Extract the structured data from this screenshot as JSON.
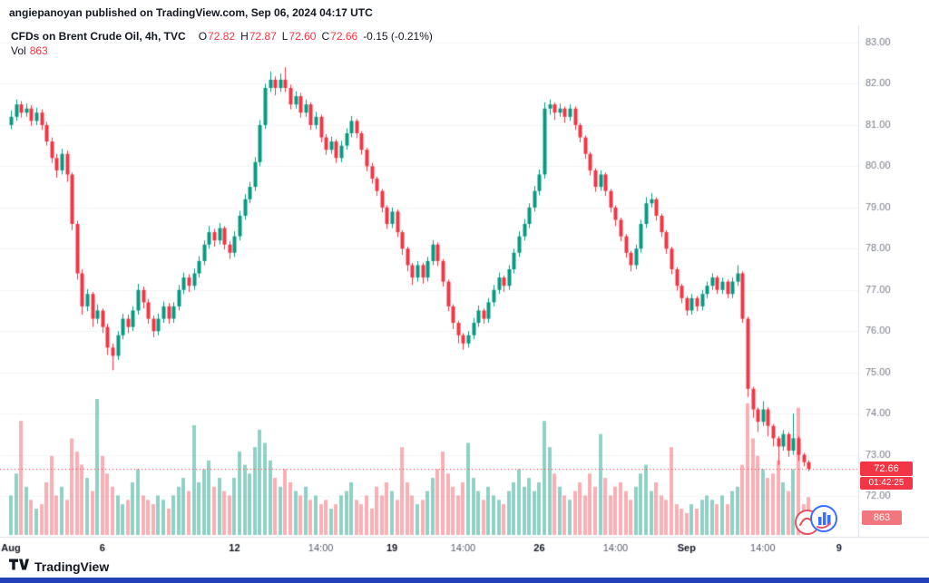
{
  "page": {
    "attribution": "angiepanoyan published on TradingView.com, Sep 06, 2024 04:17 UTC",
    "footer_brand": "TradingView"
  },
  "legend": {
    "title": "CFDs on Brent Crude Oil, 4h, TVC",
    "o_label": "O",
    "o": "72.82",
    "h_label": "H",
    "h": "72.87",
    "l_label": "L",
    "l": "72.60",
    "c_label": "C",
    "c": "72.66",
    "change": "-0.15 (-0.21%)",
    "vol_label": "Vol",
    "vol_value": "863"
  },
  "price_scale": {
    "current_price": "72.66",
    "countdown": "01:42:25",
    "volume_value": "863"
  },
  "colors": {
    "up": "#089981",
    "down": "#F23645",
    "vol_up": "rgba(8,153,129,0.45)",
    "vol_down": "rgba(242,54,69,0.40)",
    "axis_text": "#787B86",
    "tick_strong": "#131722",
    "tick_weak": "#5A5E6B",
    "grid": "#F4F5F8",
    "separator": "#DDE0E8",
    "footer_bar": "#2240B8",
    "price_line": "#F23645"
  },
  "chart_data": {
    "type": "candlestick",
    "title": "CFDs on Brent Crude Oil",
    "interval": "4h",
    "exchange": "TVC",
    "last": {
      "o": 72.82,
      "h": 72.87,
      "l": 72.6,
      "c": 72.66,
      "change": -0.15,
      "change_pct": -0.21,
      "volume": 863
    },
    "current_price": 72.66,
    "ylim": [
      72.0,
      83.0
    ],
    "grid": "faint",
    "y_axis": {
      "ticks": [
        83,
        82,
        81,
        80,
        79,
        78,
        77,
        76,
        75,
        74,
        73,
        72
      ],
      "format": "0.00"
    },
    "x_ticks": [
      {
        "i": 0,
        "label": "Aug",
        "strong": true
      },
      {
        "i": 18,
        "label": "6",
        "strong": true
      },
      {
        "i": 44,
        "label": "12",
        "strong": true
      },
      {
        "i": 61,
        "label": "14:00",
        "strong": false
      },
      {
        "i": 75,
        "label": "19",
        "strong": true
      },
      {
        "i": 89,
        "label": "14:00",
        "strong": false
      },
      {
        "i": 104,
        "label": "26",
        "strong": true
      },
      {
        "i": 119,
        "label": "14:00",
        "strong": false
      },
      {
        "i": 133,
        "label": "Sep",
        "strong": true
      },
      {
        "i": 148,
        "label": "14:00",
        "strong": false
      },
      {
        "i": 163,
        "label": "9",
        "strong": true
      }
    ],
    "candles_format": [
      "open",
      "high",
      "low",
      "close",
      "volume"
    ],
    "candles": [
      [
        81.0,
        81.35,
        80.9,
        81.2,
        900
      ],
      [
        81.2,
        81.62,
        81.1,
        81.5,
        1400
      ],
      [
        81.5,
        81.58,
        81.18,
        81.3,
        2600
      ],
      [
        81.3,
        81.52,
        81.2,
        81.4,
        1100
      ],
      [
        81.4,
        81.48,
        80.98,
        81.1,
        800
      ],
      [
        81.1,
        81.42,
        81.0,
        81.3,
        600
      ],
      [
        81.3,
        81.38,
        80.88,
        81.0,
        700
      ],
      [
        81.0,
        81.08,
        80.5,
        80.6,
        1200
      ],
      [
        80.6,
        80.7,
        80.08,
        80.2,
        1800
      ],
      [
        80.2,
        80.3,
        79.72,
        79.9,
        900
      ],
      [
        79.9,
        80.42,
        79.8,
        80.3,
        1100
      ],
      [
        80.3,
        80.38,
        79.62,
        79.8,
        800
      ],
      [
        79.8,
        79.85,
        78.45,
        78.6,
        2200
      ],
      [
        78.6,
        78.68,
        77.25,
        77.4,
        1900
      ],
      [
        77.4,
        77.5,
        76.4,
        76.6,
        1600
      ],
      [
        76.6,
        77.02,
        76.48,
        76.9,
        1300
      ],
      [
        76.9,
        76.95,
        76.1,
        76.3,
        1000
      ],
      [
        76.3,
        76.65,
        76.18,
        76.5,
        3100
      ],
      [
        76.5,
        76.55,
        75.95,
        76.1,
        1800
      ],
      [
        76.1,
        76.18,
        75.42,
        75.6,
        1400
      ],
      [
        75.6,
        75.7,
        75.05,
        75.4,
        1100
      ],
      [
        75.4,
        76.0,
        75.3,
        75.9,
        900
      ],
      [
        75.9,
        76.42,
        75.8,
        76.3,
        700
      ],
      [
        76.3,
        76.4,
        75.95,
        76.1,
        800
      ],
      [
        76.1,
        76.6,
        76.0,
        76.5,
        1200
      ],
      [
        76.5,
        77.15,
        76.4,
        77.0,
        1500
      ],
      [
        77.0,
        77.08,
        76.55,
        76.7,
        900
      ],
      [
        76.7,
        76.78,
        76.18,
        76.3,
        800
      ],
      [
        76.3,
        76.38,
        75.85,
        76.0,
        700
      ],
      [
        76.0,
        76.42,
        75.9,
        76.3,
        900
      ],
      [
        76.3,
        76.72,
        76.2,
        76.6,
        800
      ],
      [
        76.6,
        76.68,
        76.18,
        76.3,
        600
      ],
      [
        76.3,
        76.7,
        76.2,
        76.6,
        900
      ],
      [
        76.6,
        77.12,
        76.5,
        77.0,
        1100
      ],
      [
        77.0,
        77.42,
        76.9,
        77.3,
        1300
      ],
      [
        77.3,
        77.38,
        76.95,
        77.1,
        1000
      ],
      [
        77.1,
        77.52,
        77.0,
        77.4,
        2500
      ],
      [
        77.4,
        77.82,
        77.3,
        77.7,
        1200
      ],
      [
        77.7,
        78.2,
        77.6,
        78.1,
        1500
      ],
      [
        78.1,
        78.55,
        78.0,
        78.4,
        1700
      ],
      [
        78.4,
        78.48,
        78.05,
        78.2,
        1100
      ],
      [
        78.2,
        78.62,
        78.1,
        78.5,
        1300
      ],
      [
        78.5,
        78.55,
        77.98,
        78.1,
        1000
      ],
      [
        78.1,
        78.18,
        77.75,
        77.9,
        900
      ],
      [
        77.9,
        78.42,
        77.8,
        78.3,
        1300
      ],
      [
        78.3,
        78.92,
        78.2,
        78.8,
        1900
      ],
      [
        78.8,
        79.32,
        78.7,
        79.2,
        1600
      ],
      [
        79.2,
        79.62,
        79.1,
        79.5,
        1400
      ],
      [
        79.5,
        80.22,
        79.4,
        80.1,
        2000
      ],
      [
        80.1,
        81.12,
        80.0,
        81.0,
        2400
      ],
      [
        81.0,
        82.0,
        80.9,
        81.9,
        2100
      ],
      [
        81.9,
        82.3,
        81.8,
        82.1,
        1700
      ],
      [
        82.1,
        82.18,
        81.72,
        81.9,
        1300
      ],
      [
        81.9,
        82.25,
        81.8,
        82.1,
        1100
      ],
      [
        82.1,
        82.4,
        81.8,
        81.9,
        1500
      ],
      [
        81.9,
        81.98,
        81.38,
        81.5,
        1200
      ],
      [
        81.5,
        81.82,
        81.4,
        81.7,
        1000
      ],
      [
        81.7,
        81.78,
        81.18,
        81.3,
        900
      ],
      [
        81.3,
        81.62,
        81.2,
        81.5,
        1100
      ],
      [
        81.5,
        81.55,
        80.88,
        81.0,
        800
      ],
      [
        81.0,
        81.32,
        80.9,
        81.2,
        900
      ],
      [
        81.2,
        81.25,
        80.58,
        80.7,
        700
      ],
      [
        80.7,
        80.78,
        80.28,
        80.4,
        800
      ],
      [
        80.4,
        80.72,
        80.3,
        80.6,
        600
      ],
      [
        80.6,
        80.65,
        80.08,
        80.2,
        700
      ],
      [
        80.2,
        80.62,
        80.1,
        80.5,
        900
      ],
      [
        80.5,
        80.92,
        80.4,
        80.8,
        1000
      ],
      [
        80.8,
        81.22,
        80.7,
        81.1,
        1200
      ],
      [
        81.1,
        81.15,
        80.68,
        80.8,
        800
      ],
      [
        80.8,
        80.85,
        80.28,
        80.4,
        700
      ],
      [
        80.4,
        80.45,
        79.88,
        80.0,
        900
      ],
      [
        80.0,
        80.08,
        79.58,
        79.7,
        600
      ],
      [
        79.7,
        79.75,
        79.28,
        79.4,
        1100
      ],
      [
        79.4,
        79.45,
        78.88,
        79.0,
        900
      ],
      [
        79.0,
        79.05,
        78.48,
        78.6,
        1200
      ],
      [
        78.6,
        79.0,
        78.5,
        78.9,
        1000
      ],
      [
        78.9,
        78.95,
        78.28,
        78.4,
        800
      ],
      [
        78.4,
        78.45,
        77.85,
        78.0,
        2000
      ],
      [
        78.0,
        78.05,
        77.45,
        77.6,
        1200
      ],
      [
        77.6,
        77.65,
        77.12,
        77.3,
        900
      ],
      [
        77.3,
        77.7,
        77.2,
        77.6,
        700
      ],
      [
        77.6,
        77.65,
        77.15,
        77.3,
        800
      ],
      [
        77.3,
        77.8,
        77.2,
        77.7,
        1000
      ],
      [
        77.7,
        78.2,
        77.6,
        78.1,
        1300
      ],
      [
        78.1,
        78.15,
        77.58,
        77.7,
        1500
      ],
      [
        77.7,
        77.75,
        77.08,
        77.2,
        1900
      ],
      [
        77.2,
        77.25,
        76.48,
        76.6,
        1400
      ],
      [
        76.6,
        76.65,
        76.05,
        76.2,
        1100
      ],
      [
        76.2,
        76.25,
        75.7,
        75.9,
        900
      ],
      [
        75.9,
        75.95,
        75.55,
        75.7,
        1200
      ],
      [
        75.7,
        76.0,
        75.6,
        75.9,
        2100
      ],
      [
        75.9,
        76.32,
        75.8,
        76.2,
        1300
      ],
      [
        76.2,
        76.62,
        76.1,
        76.5,
        1000
      ],
      [
        76.5,
        76.55,
        76.18,
        76.3,
        800
      ],
      [
        76.3,
        76.8,
        76.2,
        76.7,
        1100
      ],
      [
        76.7,
        77.12,
        76.6,
        77.0,
        900
      ],
      [
        77.0,
        77.42,
        76.9,
        77.3,
        800
      ],
      [
        77.3,
        77.35,
        76.95,
        77.1,
        700
      ],
      [
        77.1,
        77.6,
        77.0,
        77.5,
        1000
      ],
      [
        77.5,
        78.0,
        77.4,
        77.9,
        1200
      ],
      [
        77.9,
        78.42,
        77.8,
        78.3,
        1500
      ],
      [
        78.3,
        78.72,
        78.2,
        78.6,
        1100
      ],
      [
        78.6,
        79.1,
        78.5,
        79.0,
        1300
      ],
      [
        79.0,
        79.52,
        78.9,
        79.4,
        1000
      ],
      [
        79.4,
        79.92,
        79.3,
        79.8,
        1200
      ],
      [
        79.8,
        81.55,
        79.7,
        81.4,
        2600
      ],
      [
        81.4,
        81.62,
        81.25,
        81.5,
        2000
      ],
      [
        81.5,
        81.55,
        81.12,
        81.3,
        1400
      ],
      [
        81.3,
        81.52,
        81.2,
        81.4,
        1100
      ],
      [
        81.4,
        81.45,
        81.05,
        81.2,
        900
      ],
      [
        81.2,
        81.5,
        81.1,
        81.4,
        800
      ],
      [
        81.4,
        81.45,
        80.88,
        81.0,
        1000
      ],
      [
        81.0,
        81.05,
        80.58,
        80.7,
        1200
      ],
      [
        80.7,
        80.75,
        80.18,
        80.3,
        900
      ],
      [
        80.3,
        80.35,
        79.78,
        79.9,
        1400
      ],
      [
        79.9,
        79.95,
        79.38,
        79.5,
        1100
      ],
      [
        79.5,
        79.9,
        79.4,
        79.8,
        2300
      ],
      [
        79.8,
        79.85,
        79.28,
        79.4,
        1300
      ],
      [
        79.4,
        79.45,
        78.88,
        79.0,
        900
      ],
      [
        79.0,
        79.05,
        78.55,
        78.7,
        1100
      ],
      [
        78.7,
        78.75,
        78.18,
        78.3,
        1200
      ],
      [
        78.3,
        78.35,
        77.78,
        77.9,
        1000
      ],
      [
        77.9,
        77.95,
        77.45,
        77.6,
        800
      ],
      [
        77.6,
        78.1,
        77.5,
        78.0,
        1100
      ],
      [
        78.0,
        78.7,
        77.9,
        78.6,
        1400
      ],
      [
        78.6,
        79.25,
        78.5,
        79.1,
        1600
      ],
      [
        79.1,
        79.35,
        79.0,
        79.2,
        1000
      ],
      [
        79.2,
        79.25,
        78.68,
        78.8,
        1200
      ],
      [
        78.8,
        78.85,
        78.28,
        78.4,
        900
      ],
      [
        78.4,
        78.45,
        77.88,
        78.0,
        800
      ],
      [
        78.0,
        78.05,
        77.38,
        77.5,
        2000
      ],
      [
        77.5,
        77.55,
        76.98,
        77.1,
        700
      ],
      [
        77.1,
        77.15,
        76.68,
        76.8,
        600
      ],
      [
        76.8,
        76.85,
        76.38,
        76.5,
        500
      ],
      [
        76.5,
        76.9,
        76.4,
        76.8,
        700
      ],
      [
        76.8,
        76.85,
        76.48,
        76.6,
        600
      ],
      [
        76.6,
        77.0,
        76.5,
        76.9,
        800
      ],
      [
        76.9,
        77.2,
        76.8,
        77.1,
        900
      ],
      [
        77.1,
        77.4,
        77.0,
        77.3,
        800
      ],
      [
        77.3,
        77.35,
        76.9,
        77.0,
        700
      ],
      [
        77.0,
        77.3,
        76.9,
        77.2,
        900
      ],
      [
        77.2,
        77.25,
        76.8,
        76.9,
        700
      ],
      [
        76.9,
        77.3,
        76.8,
        77.2,
        1000
      ],
      [
        77.2,
        77.6,
        77.1,
        77.4,
        1100
      ],
      [
        77.4,
        77.45,
        76.2,
        76.3,
        1600
      ],
      [
        76.3,
        76.35,
        74.4,
        74.6,
        3000
      ],
      [
        74.6,
        74.65,
        73.9,
        74.1,
        2200
      ],
      [
        74.1,
        74.15,
        73.55,
        73.8,
        1800
      ],
      [
        73.8,
        74.3,
        73.7,
        74.1,
        1500
      ],
      [
        74.1,
        74.15,
        73.45,
        73.7,
        1300
      ],
      [
        73.7,
        73.75,
        73.2,
        73.4,
        1400
      ],
      [
        73.4,
        73.45,
        72.75,
        73.2,
        1700
      ],
      [
        73.2,
        73.6,
        73.1,
        73.5,
        1200
      ],
      [
        73.5,
        73.55,
        72.95,
        73.1,
        1000
      ],
      [
        73.1,
        74.0,
        73.0,
        73.4,
        1500
      ],
      [
        73.4,
        73.45,
        72.85,
        73.0,
        2900
      ],
      [
        73.0,
        73.05,
        72.72,
        72.82,
        700
      ],
      [
        72.82,
        72.87,
        72.6,
        72.66,
        863
      ]
    ]
  }
}
